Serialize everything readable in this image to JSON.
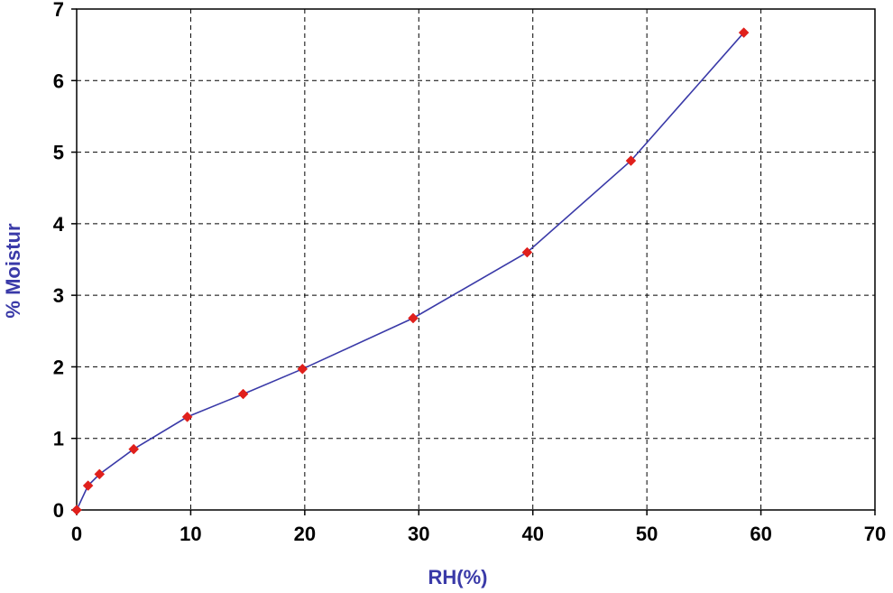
{
  "chart_data": {
    "type": "line",
    "title": "",
    "xlabel": "RH(%)",
    "ylabel": "% Moistur",
    "xlim": [
      0,
      70
    ],
    "ylim": [
      0,
      7
    ],
    "xticks": [
      "0",
      "10",
      "20",
      "30",
      "40",
      "50",
      "60",
      "70"
    ],
    "yticks": [
      "0",
      "1",
      "2",
      "3",
      "4",
      "5",
      "6",
      "7"
    ],
    "grid": true,
    "legend": "none",
    "colors": {
      "line": "#3a3aa8",
      "marker": "#e0201c",
      "axis_title": "#3a3aa8",
      "grid": "#000000"
    },
    "series": [
      {
        "x": [
          0,
          1,
          2,
          5,
          9.7,
          14.6,
          19.8,
          29.5,
          39.5,
          48.6,
          58.5
        ],
        "y": [
          0,
          0.34,
          0.5,
          0.85,
          1.3,
          1.62,
          1.97,
          2.68,
          3.6,
          4.88,
          6.67
        ]
      }
    ]
  }
}
